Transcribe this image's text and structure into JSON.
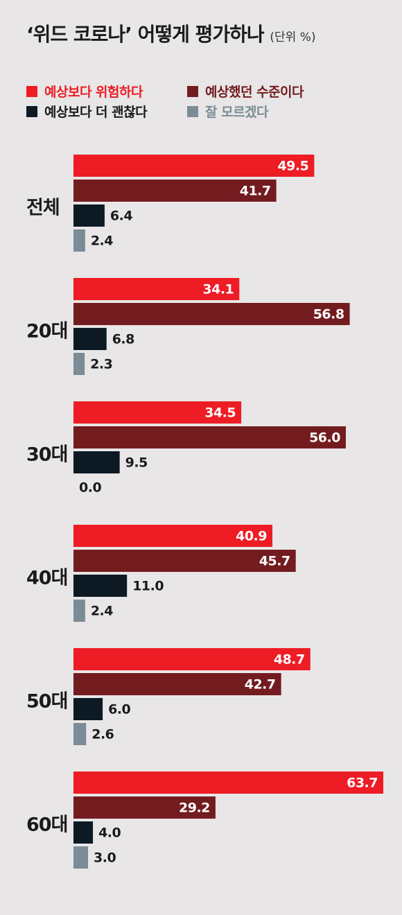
{
  "title": "‘위드 코로나’ 어떻게 평가하나",
  "unit": "(단위 %)",
  "colors": {
    "s1": "#ee1c25",
    "s2": "#731c1f",
    "s3": "#0d1a24",
    "s4": "#7b8c96",
    "label_dark": "#1a1a1a"
  },
  "chart_data": {
    "type": "bar",
    "orientation": "horizontal",
    "title": "‘위드 코로나’ 어떻게 평가하나",
    "unit": "(단위 %)",
    "categories": [
      "전체",
      "20대",
      "30대",
      "40대",
      "50대",
      "60대"
    ],
    "series": [
      {
        "name": "예상보다 위험하다",
        "values": [
          49.5,
          34.1,
          34.5,
          40.9,
          48.7,
          63.7
        ]
      },
      {
        "name": "예상했던 수준이다",
        "values": [
          41.7,
          56.8,
          56.0,
          45.7,
          42.7,
          29.2
        ]
      },
      {
        "name": "예상보다 더 괜찮다",
        "values": [
          6.4,
          6.8,
          9.5,
          11.0,
          6.0,
          4.0
        ]
      },
      {
        "name": "잘 모르겠다",
        "values": [
          2.4,
          2.3,
          0.0,
          2.4,
          2.6,
          3.0
        ]
      }
    ],
    "xlim": [
      0,
      63.7
    ],
    "grid": false,
    "legend": "top-left"
  }
}
